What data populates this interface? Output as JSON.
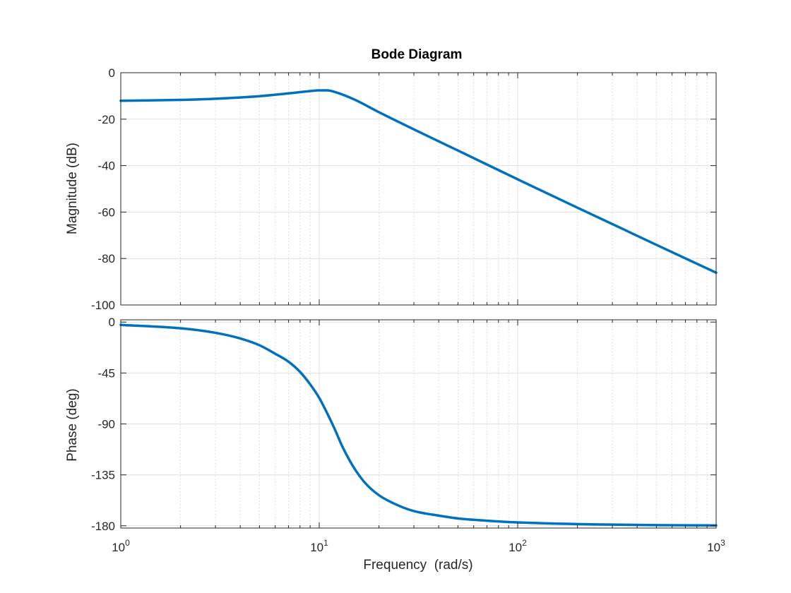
{
  "chart_data": {
    "type": "line",
    "title": "Bode Diagram",
    "xlabel": "Frequency  (rad/s)",
    "xscale": "log",
    "xlim": [
      1,
      1000
    ],
    "x_tick_labels": [
      {
        "base": "10",
        "exp": "0"
      },
      {
        "base": "10",
        "exp": "1"
      },
      {
        "base": "10",
        "exp": "2"
      },
      {
        "base": "10",
        "exp": "3"
      }
    ],
    "grid": true,
    "line_color": "#0072BD",
    "panels": [
      {
        "ylabel": "Magnitude (dB)",
        "ylim": [
          -100,
          0
        ],
        "yticks": [
          0,
          -20,
          -40,
          -60,
          -80,
          -100
        ],
        "ytick_labels": [
          "0",
          "-20",
          "-40",
          "-60",
          "-80",
          "-100"
        ],
        "series": [
          {
            "x": [
              1,
              2,
              3,
              5,
              7,
              9,
              10,
              11,
              12,
              15,
              20,
              30,
              50,
              100,
              200,
              500,
              1000
            ],
            "y": [
              -12.1,
              -11.7,
              -11.2,
              -10.1,
              -8.9,
              -7.9,
              -7.6,
              -7.6,
              -8.3,
              -11.5,
              -17.0,
              -24.4,
              -33.5,
              -45.9,
              -58.1,
              -74.1,
              -86.1
            ]
          }
        ]
      },
      {
        "ylabel": "Phase (deg)",
        "ylim": [
          -182,
          2
        ],
        "yticks": [
          0,
          -45,
          -90,
          -135,
          -180
        ],
        "ytick_labels": [
          "0",
          "-45",
          "-90",
          "-135",
          "-180"
        ],
        "series": [
          {
            "x": [
              1,
              2,
              3,
              4,
              5,
              6,
              7,
              8,
              9,
              10,
              11,
              12,
              13,
              14,
              15,
              17,
              20,
              25,
              30,
              40,
              50,
              70,
              100,
              200,
              500,
              1000
            ],
            "y": [
              -2.5,
              -5.5,
              -9.5,
              -14.5,
              -20.5,
              -28,
              -35,
              -44,
              -55,
              -67,
              -81,
              -95,
              -109,
              -120,
              -129,
              -142,
              -153,
              -162,
              -167,
              -171,
              -173.5,
              -175.5,
              -177,
              -178.5,
              -179.4,
              -179.7
            ]
          }
        ]
      }
    ]
  }
}
